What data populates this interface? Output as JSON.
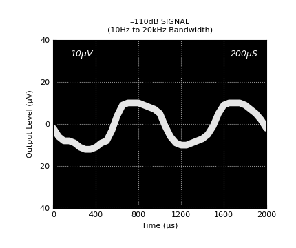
{
  "chart_data": {
    "type": "line",
    "title": "–110dB SIGNAL",
    "subtitle": "(10Hz to 20kHz Bandwidth)",
    "x_label": "Time (µs)",
    "y_label": "Output Level (µV)",
    "annotations": [
      "10µV",
      "200µS"
    ],
    "x": [
      0,
      50,
      100,
      150,
      200,
      250,
      300,
      350,
      400,
      450,
      500,
      550,
      600,
      650,
      700,
      750,
      800,
      850,
      900,
      950,
      1000,
      1050,
      1100,
      1150,
      1200,
      1250,
      1300,
      1350,
      1400,
      1450,
      1500,
      1550,
      1600,
      1650,
      1700,
      1750,
      1800,
      1850,
      1900,
      1950,
      2000
    ],
    "values": [
      -2,
      -6,
      -8,
      -8,
      -9,
      -11,
      -12,
      -12,
      -11,
      -9,
      -8,
      -3,
      4,
      9,
      10,
      10,
      10,
      9,
      8,
      7,
      5,
      -1,
      -6,
      -9,
      -10,
      -10,
      -9,
      -8,
      -7,
      -5,
      -1,
      5,
      9,
      10,
      10,
      10,
      9,
      7,
      5,
      2,
      -2
    ],
    "color": "#e6e6e6",
    "xlim": [
      0,
      2000
    ],
    "xticks": [
      0,
      400,
      800,
      1200,
      1600,
      2000
    ],
    "ylim": [
      -40,
      40
    ],
    "yticks": [
      -40,
      -20,
      0,
      20,
      40
    ],
    "grid": true
  }
}
